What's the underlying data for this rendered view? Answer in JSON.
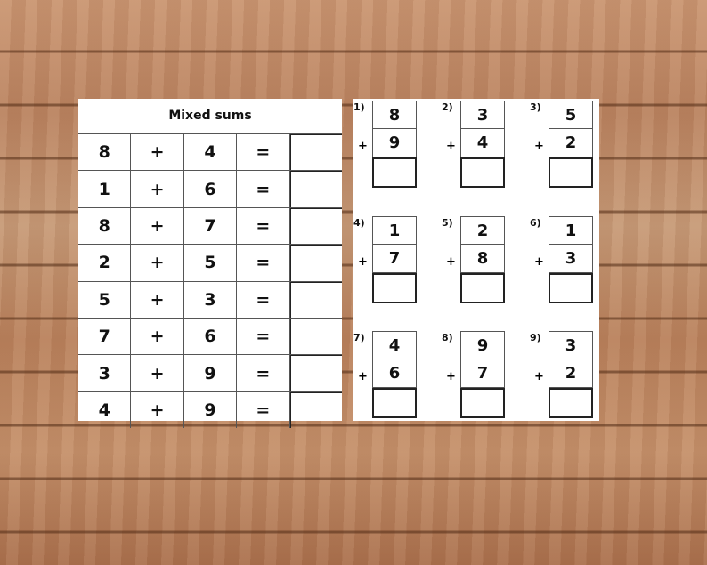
{
  "left_sheet": {
    "title": "Mixed sums",
    "rows": [
      {
        "a": "8",
        "op": "+",
        "b": "4",
        "eq": "="
      },
      {
        "a": "1",
        "op": "+",
        "b": "6",
        "eq": "="
      },
      {
        "a": "8",
        "op": "+",
        "b": "7",
        "eq": "="
      },
      {
        "a": "2",
        "op": "+",
        "b": "5",
        "eq": "="
      },
      {
        "a": "5",
        "op": "+",
        "b": "3",
        "eq": "="
      },
      {
        "a": "7",
        "op": "+",
        "b": "6",
        "eq": "="
      },
      {
        "a": "3",
        "op": "+",
        "b": "9",
        "eq": "="
      },
      {
        "a": "4",
        "op": "+",
        "b": "9",
        "eq": "="
      }
    ]
  },
  "right_sheet": {
    "problems": [
      {
        "label": "1)",
        "top": "8",
        "bottom": "9",
        "op": "+"
      },
      {
        "label": "2)",
        "top": "3",
        "bottom": "4",
        "op": "+"
      },
      {
        "label": "3)",
        "top": "5",
        "bottom": "2",
        "op": "+"
      },
      {
        "label": "4)",
        "top": "1",
        "bottom": "7",
        "op": "+"
      },
      {
        "label": "5)",
        "top": "2",
        "bottom": "8",
        "op": "+"
      },
      {
        "label": "6)",
        "top": "1",
        "bottom": "3",
        "op": "+"
      },
      {
        "label": "7)",
        "top": "4",
        "bottom": "6",
        "op": "+"
      },
      {
        "label": "8)",
        "top": "9",
        "bottom": "7",
        "op": "+"
      },
      {
        "label": "9)",
        "top": "3",
        "bottom": "2",
        "op": "+"
      }
    ]
  }
}
